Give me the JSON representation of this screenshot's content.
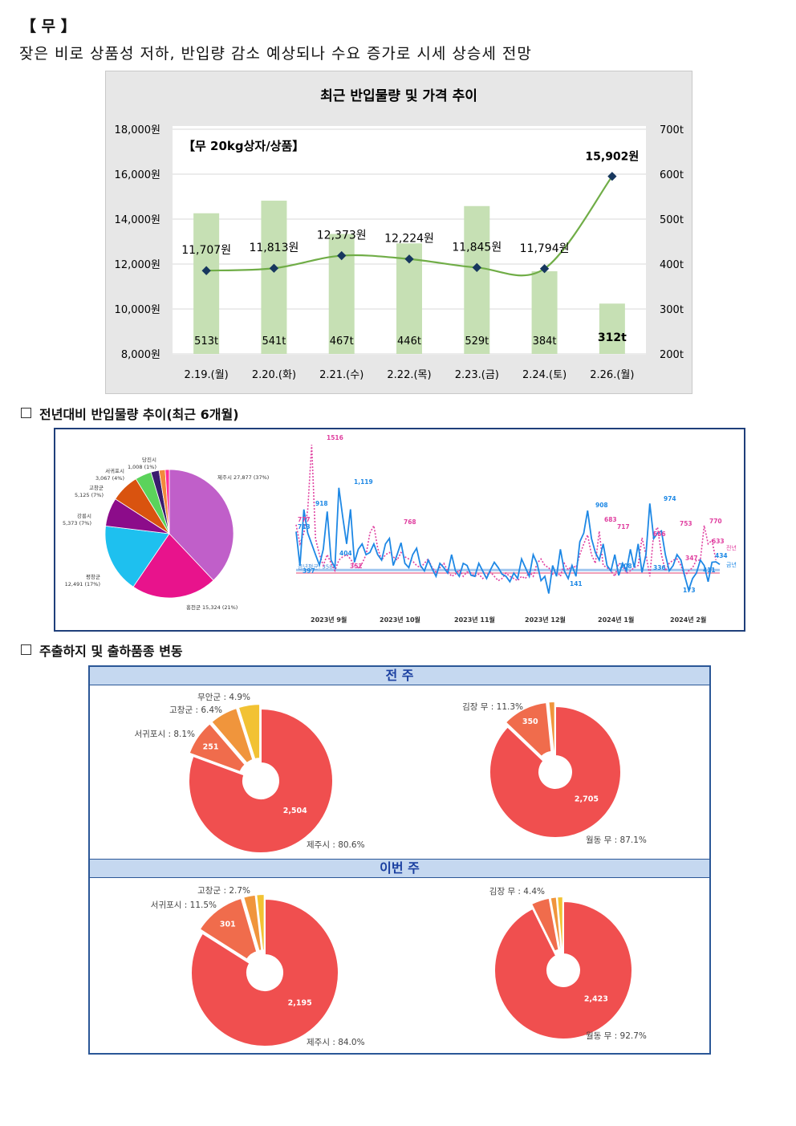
{
  "heading": "【 무 】",
  "subtitle": "잦은 비로 상품성 저하, 반입량 감소 예상되나 수요 증가로 시세 상승세 전망",
  "main_chart": {
    "title": "최근 반입물량 및 가격 추이",
    "box_label": "【무 20kg상자/상품】",
    "colors": {
      "bar": "#c6e0b4",
      "line": "#70ad47",
      "marker": "#17375e"
    },
    "chart_data": {
      "type": "bar+line",
      "categories": [
        "2.19.(월)",
        "2.20.(화)",
        "2.21.(수)",
        "2.22.(목)",
        "2.23.(금)",
        "2.24.(토)",
        "2.26.(월)"
      ],
      "bars": {
        "values": [
          513,
          541,
          467,
          446,
          529,
          384,
          312
        ],
        "labels": [
          "513t",
          "541t",
          "467t",
          "446t",
          "529t",
          "384t",
          "312t"
        ]
      },
      "line": {
        "values": [
          11707,
          11813,
          12373,
          12224,
          11845,
          11794,
          15902
        ],
        "labels": [
          "11,707원",
          "11,813원",
          "12,373원",
          "12,224원",
          "11,845원",
          "11,794원",
          "15,902원"
        ]
      },
      "y_left": {
        "range": [
          8000,
          18000
        ],
        "ticks": [
          "8,000원",
          "10,000원",
          "12,000원",
          "14,000원",
          "16,000원",
          "18,000원"
        ]
      },
      "y_right": {
        "range": [
          200,
          700
        ],
        "ticks": [
          "200t",
          "300t",
          "400t",
          "500t",
          "600t",
          "700t"
        ]
      }
    }
  },
  "section1": {
    "title": "전년대비 반입물량 추이(최근 6개월)"
  },
  "origin_pie": {
    "chart_data": {
      "type": "pie",
      "slices": [
        {
          "label": "제주시 27,877 (37%)",
          "value": 37,
          "color": "#c05fc9"
        },
        {
          "label": "홍천군 15,324 (21%)",
          "value": 21,
          "color": "#e8138c"
        },
        {
          "label": "평창군 12,491 (17%)",
          "value": 17,
          "color": "#1ec0ef"
        },
        {
          "label": "강릉시 5,373 (7%)",
          "value": 7,
          "color": "#8c0c8a"
        },
        {
          "label": "고창군 5,125 (7%)",
          "value": 7,
          "color": "#d9530f"
        },
        {
          "label": "서귀포시 3,067 (4%)",
          "value": 4,
          "color": "#5bd35b"
        },
        {
          "label": "",
          "value": 2,
          "color": "#3a1d6e"
        },
        {
          "label": "당진시 1,008 (1%)",
          "value": 1.5,
          "color": "#f28a3c"
        },
        {
          "label": "",
          "value": 1,
          "color": "#ff2e9a"
        }
      ]
    }
  },
  "trend_chart": {
    "colors": {
      "this_year": "#1e88e5",
      "last_year": "#e040a0"
    },
    "legend": {
      "last_year": "전년",
      "this_year": "금년"
    },
    "avg_label": "금년평균: 358",
    "chart_data": {
      "type": "line",
      "x_ticks": [
        "2023년 9월",
        "2023년 10월",
        "2023년 11월",
        "2023년 12월",
        "2024년 1월",
        "2024년 2월"
      ],
      "this_year": [
        713,
        397,
        918,
        700,
        600,
        500,
        404,
        550,
        900,
        450,
        380,
        1119,
        850,
        600,
        920,
        430,
        550,
        600,
        500,
        520,
        600,
        500,
        450,
        600,
        650,
        400,
        500,
        610,
        420,
        380,
        500,
        560,
        400,
        350,
        450,
        370,
        300,
        420,
        380,
        330,
        500,
        350,
        300,
        420,
        400,
        310,
        300,
        420,
        350,
        280,
        360,
        430,
        380,
        320,
        300,
        250,
        330,
        280,
        460,
        380,
        300,
        500,
        420,
        260,
        300,
        141,
        400,
        300,
        550,
        350,
        280,
        400,
        300,
        620,
        700,
        908,
        650,
        520,
        450,
        600,
        400,
        350,
        500,
        308,
        420,
        350,
        550,
        380,
        600,
        336,
        500,
        974,
        650,
        700,
        720,
        500,
        350,
        400,
        500,
        450,
        300,
        173,
        280,
        330,
        450,
        400,
        250,
        430,
        434,
        410
      ],
      "last_year": [
        777,
        600,
        700,
        913,
        1516,
        650,
        500,
        400,
        500,
        420,
        352,
        450,
        480,
        500,
        460,
        400,
        380,
        420,
        500,
        700,
        768,
        560,
        450,
        500,
        520,
        480,
        450,
        520,
        480,
        460,
        440,
        400,
        380,
        420,
        460,
        380,
        340,
        380,
        420,
        350,
        300,
        320,
        360,
        300,
        340,
        330,
        300,
        320,
        280,
        310,
        340,
        300,
        260,
        280,
        330,
        300,
        280,
        260,
        300,
        280,
        340,
        300,
        420,
        460,
        400,
        380,
        320,
        350,
        300,
        420,
        360,
        400,
        380,
        500,
        600,
        683,
        500,
        420,
        717,
        400,
        380,
        350,
        300,
        420,
        400,
        330,
        350,
        380,
        400,
        656,
        500,
        300,
        700,
        753,
        500,
        350,
        420,
        450,
        460,
        400,
        300,
        350,
        380,
        450,
        450,
        770,
        600,
        633,
        450
      ],
      "labels": [
        "1516",
        "713",
        "918",
        "777",
        "1,119",
        "397",
        "404",
        "352",
        "768",
        "908",
        "683",
        "717",
        "974",
        "753",
        "656",
        "770",
        "308",
        "336",
        "173",
        "141",
        "434",
        "633",
        "411",
        "347"
      ]
    }
  },
  "section2": {
    "title": "주출하지 및 출하품종 변동"
  },
  "shipping": {
    "bands": {
      "last_week": "전 주",
      "this_week": "이번 주"
    },
    "donuts": [
      {
        "slices": [
          {
            "value": 80.6,
            "color": "#f04f4f",
            "inner": "2,504",
            "outer": "제주시 : 80.6%"
          },
          {
            "value": 8.1,
            "color": "#f06c4c",
            "inner": "251",
            "outer": "서귀포시 : 8.1%"
          },
          {
            "value": 6.4,
            "color": "#f0953c",
            "inner": "",
            "outer": "고창군 : 6.4%"
          },
          {
            "value": 4.9,
            "color": "#f2c233",
            "inner": "",
            "outer": "무안군 : 4.9%"
          }
        ]
      },
      {
        "slices": [
          {
            "value": 87.1,
            "color": "#f04f4f",
            "inner": "2,705",
            "outer": "월동 무 : 87.1%"
          },
          {
            "value": 11.3,
            "color": "#f06c4c",
            "inner": "350",
            "outer": "김장 무 : 11.3%"
          },
          {
            "value": 1.6,
            "color": "#f0953c",
            "inner": "",
            "outer": ""
          }
        ]
      },
      {
        "slices": [
          {
            "value": 84.0,
            "color": "#f04f4f",
            "inner": "2,195",
            "outer": "제주시 : 84.0%"
          },
          {
            "value": 11.5,
            "color": "#f06c4c",
            "inner": "301",
            "outer": "서귀포시 : 11.5%"
          },
          {
            "value": 2.7,
            "color": "#f0953c",
            "inner": "",
            "outer": "고창군 : 2.7%"
          },
          {
            "value": 1.8,
            "color": "#f2c233",
            "inner": "",
            "outer": ""
          }
        ]
      },
      {
        "slices": [
          {
            "value": 92.7,
            "color": "#f04f4f",
            "inner": "2,423",
            "outer": "월동 무 : 92.7%"
          },
          {
            "value": 4.4,
            "color": "#f06c4c",
            "inner": "",
            "outer": "김장 무 : 4.4%"
          },
          {
            "value": 1.5,
            "color": "#f0953c",
            "inner": "",
            "outer": ""
          },
          {
            "value": 1.4,
            "color": "#f2c233",
            "inner": "",
            "outer": ""
          }
        ]
      }
    ]
  }
}
